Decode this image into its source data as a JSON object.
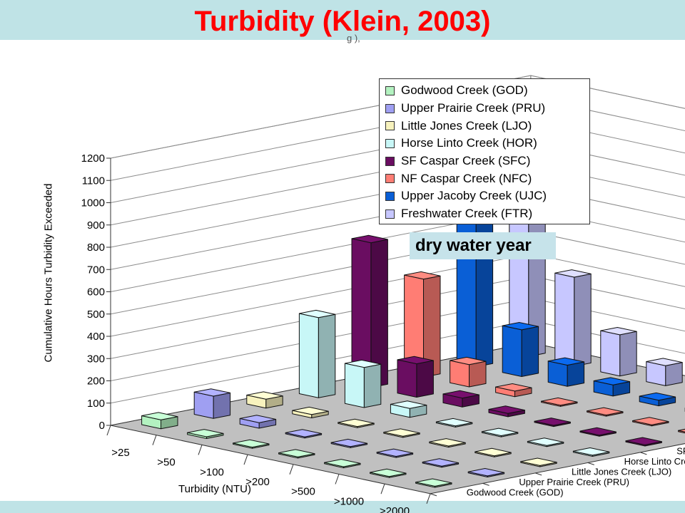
{
  "title": "Turbidity (Klein, 2003)",
  "partial_header_text": "g     ),",
  "note": "dry water year",
  "colors": {
    "band": "#bfe3e6",
    "title": "#ff0000",
    "note_bg": "#c6e3ea",
    "floor": "#c0c0c0",
    "walls": "#ffffff",
    "gridline": "#8c8c8c"
  },
  "chart_data": {
    "type": "bar",
    "subtype": "3d-bar",
    "title": "Turbidity (Klein, 2003)",
    "xlabel": "Turbidity (NTU)",
    "ylabel": "Cumulative Hours Turbidity Exceeded",
    "ylim": [
      0,
      1200
    ],
    "yticks": [
      0,
      100,
      200,
      300,
      400,
      500,
      600,
      700,
      800,
      900,
      1000,
      1100,
      1200
    ],
    "categories": [
      ">25",
      ">50",
      ">100",
      ">200",
      ">500",
      ">1000",
      ">2000"
    ],
    "grid": true,
    "legend_position": "top-right",
    "series": [
      {
        "name": "Godwood Creek (GOD)",
        "color": "#b3f2c0",
        "values": [
          40,
          8,
          5,
          5,
          5,
          5,
          5
        ]
      },
      {
        "name": "Upper Prairie Creek (PRU)",
        "color": "#9f9ff2",
        "values": [
          100,
          25,
          5,
          5,
          5,
          5,
          5
        ]
      },
      {
        "name": "Little Jones Creek (LJO)",
        "color": "#f7f2bd",
        "values": [
          40,
          15,
          5,
          5,
          5,
          5,
          5
        ]
      },
      {
        "name": "Horse Linto Creek (HOR)",
        "color": "#c8f7f7",
        "values": [
          360,
          180,
          40,
          5,
          5,
          5,
          5
        ]
      },
      {
        "name": "SF Caspar Creek (SFC)",
        "color": "#6a0d61",
        "values": [
          650,
          150,
          40,
          15,
          5,
          5,
          5
        ]
      },
      {
        "name": "NF Caspar Creek (NFC)",
        "color": "#ff7d74",
        "values": [
          440,
          100,
          25,
          5,
          5,
          5,
          5
        ]
      },
      {
        "name": "Upper Jacoby Creek (UJC)",
        "color": "#0a5fd6",
        "values": [
          945,
          210,
          95,
          50,
          25,
          15,
          10
        ]
      },
      {
        "name": "Freshwater Creek (FTR)",
        "color": "#c7c7ff",
        "values": [
          1170,
          400,
          185,
          90,
          40,
          20,
          10
        ]
      }
    ]
  }
}
